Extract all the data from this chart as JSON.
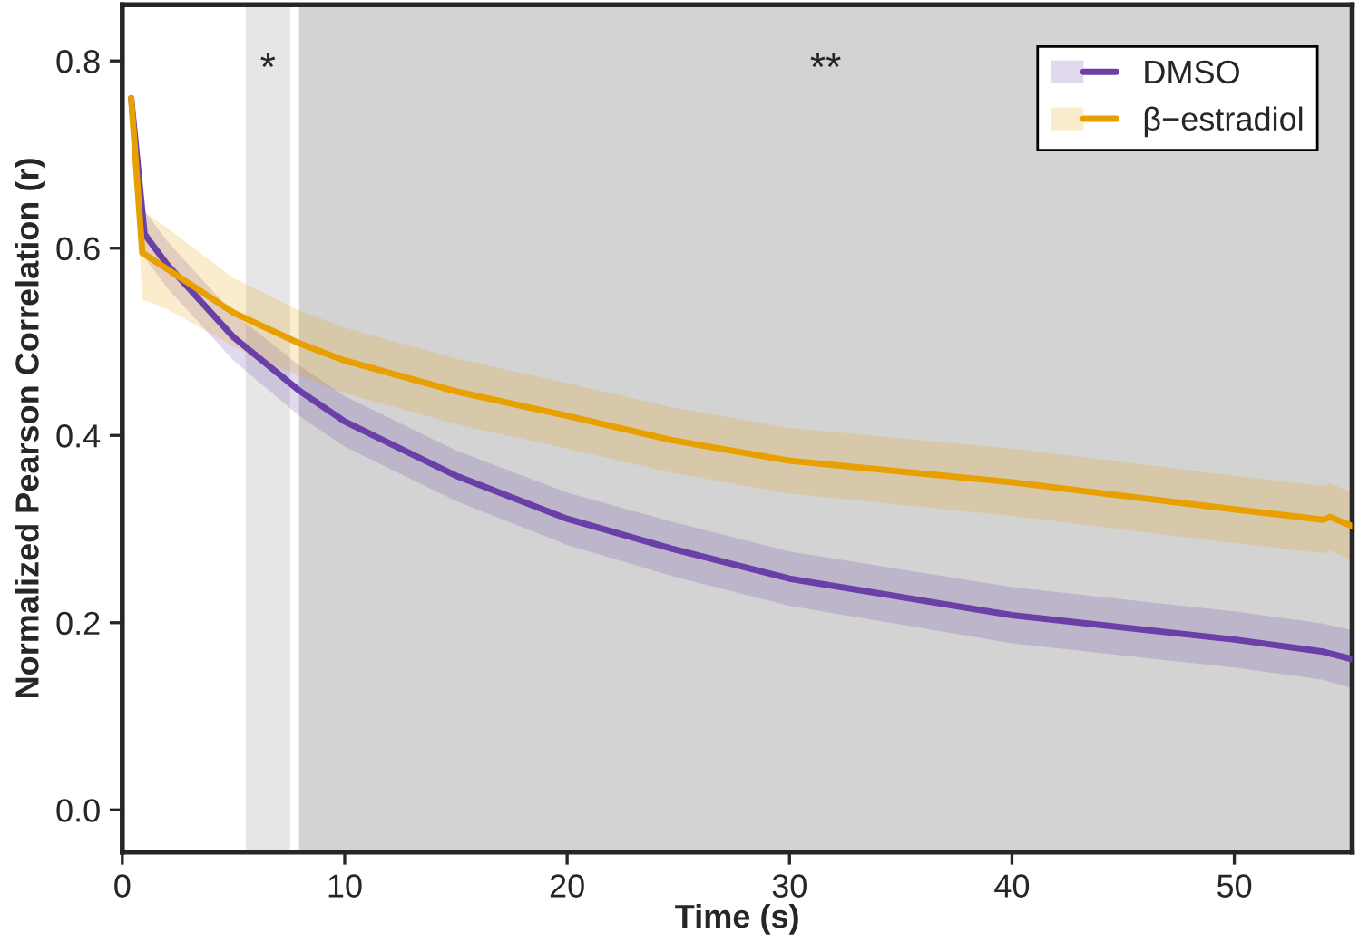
{
  "chart_data": {
    "type": "line",
    "xlabel": "Time (s)",
    "ylabel": "Normalized Pearson Correlation (r)",
    "xlim": [
      0,
      55.3
    ],
    "ylim": [
      -0.045,
      0.86
    ],
    "xticks": [
      0,
      10,
      20,
      30,
      40,
      50
    ],
    "yticks": [
      {
        "value": 0,
        "label": "0.0"
      },
      {
        "value": 0.2,
        "label": "0.2"
      },
      {
        "value": 0.4,
        "label": "0.4"
      },
      {
        "value": 0.6,
        "label": "0.6"
      },
      {
        "value": 0.8,
        "label": "0.8"
      }
    ],
    "grid": false,
    "legend": "top right",
    "line_style": "solid",
    "marker": "none",
    "bands": [
      {
        "axis": "x",
        "from": 5.55,
        "to": 7.54,
        "label": "*",
        "color": "#e6e6e6"
      },
      {
        "axis": "x",
        "from": 7.95,
        "to": 55.3,
        "label": "**",
        "color": "#d3d3d3"
      }
    ],
    "series": [
      {
        "name": "DMSO",
        "color": "#6a3fa8",
        "x": [
          0.4,
          1,
          2,
          5,
          8,
          10,
          15,
          20,
          24.7,
          30,
          40,
          50,
          54,
          55.3
        ],
        "values": [
          0.76,
          0.615,
          0.583,
          0.505,
          0.447,
          0.415,
          0.357,
          0.311,
          0.279,
          0.247,
          0.208,
          0.182,
          0.169,
          0.161
        ],
        "lower": [
          0.76,
          0.59,
          0.558,
          0.48,
          0.42,
          0.388,
          0.33,
          0.283,
          0.25,
          0.218,
          0.178,
          0.152,
          0.139,
          0.13
        ],
        "upper": [
          0.76,
          0.64,
          0.608,
          0.53,
          0.474,
          0.442,
          0.384,
          0.339,
          0.308,
          0.276,
          0.238,
          0.212,
          0.199,
          0.192
        ]
      },
      {
        "name": "β−estradiol",
        "color": "#e8a000",
        "x": [
          0.4,
          0.9,
          2,
          5,
          8,
          10,
          15,
          20,
          24.7,
          30,
          40,
          50,
          54,
          54.3,
          55.3
        ],
        "values": [
          0.76,
          0.595,
          0.578,
          0.531,
          0.498,
          0.48,
          0.447,
          0.421,
          0.395,
          0.373,
          0.35,
          0.321,
          0.31,
          0.313,
          0.303
        ],
        "lower": [
          0.76,
          0.545,
          0.535,
          0.495,
          0.463,
          0.445,
          0.412,
          0.386,
          0.36,
          0.338,
          0.314,
          0.285,
          0.274,
          0.277,
          0.267
        ],
        "upper": [
          0.76,
          0.64,
          0.622,
          0.568,
          0.533,
          0.515,
          0.482,
          0.456,
          0.43,
          0.408,
          0.386,
          0.357,
          0.346,
          0.349,
          0.339
        ]
      }
    ]
  }
}
